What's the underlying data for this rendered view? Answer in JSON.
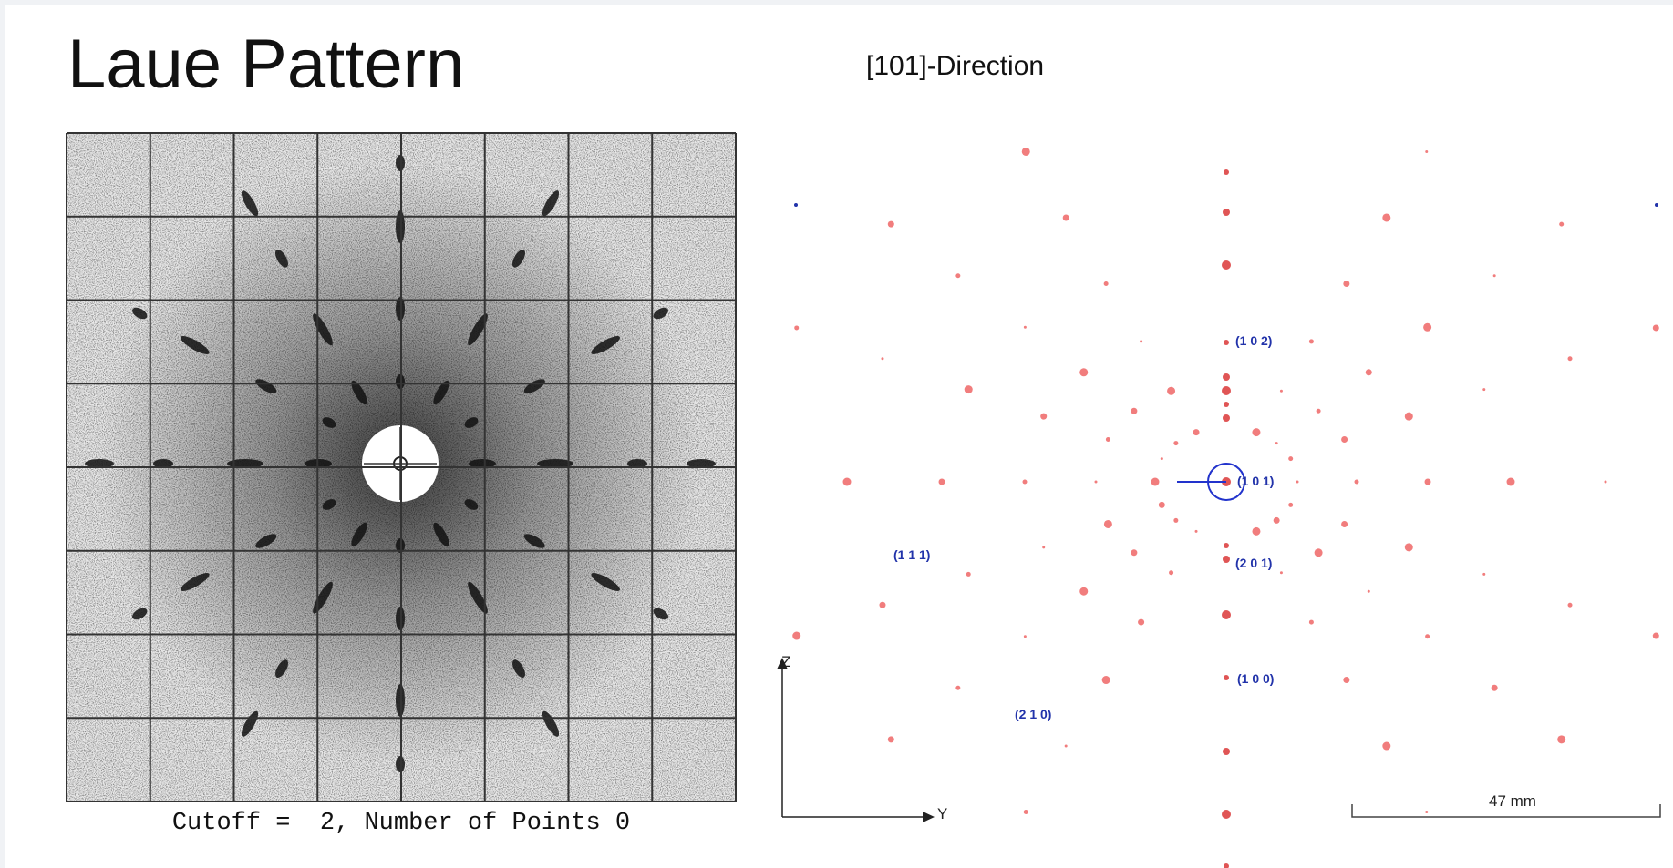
{
  "slide": {
    "title": "Laue Pattern",
    "left_image": {
      "caption": "Cutoff =  2, Number of Points 0"
    },
    "right_image": {
      "title": "[101]-Direction",
      "reflections": [
        "(1 0 2)",
        "(1 0 1)",
        "(2 0 1)",
        "(1 0 0)",
        "(1 1 1)",
        "(2 1 0)"
      ],
      "axis_vertical": "Z",
      "axis_horizontal": "Y",
      "scale_bar": "47 mm"
    }
  }
}
